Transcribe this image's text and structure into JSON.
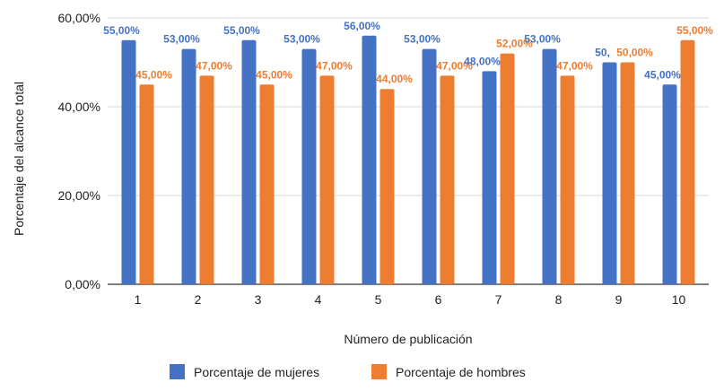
{
  "chart_data": {
    "type": "bar",
    "title": "",
    "xlabel": "Número de publicación",
    "ylabel": "Porcentaje del alcance total",
    "categories": [
      "1",
      "2",
      "3",
      "4",
      "5",
      "6",
      "7",
      "8",
      "9",
      "10"
    ],
    "ylim": [
      0,
      60
    ],
    "yticks": [
      0,
      20,
      40,
      60
    ],
    "ytick_labels": [
      "0,00%",
      "20,00%",
      "40,00%",
      "60,00%"
    ],
    "grid": true,
    "legend_position": "bottom",
    "series": [
      {
        "name": "Porcentaje de mujeres",
        "color": "#4472c4",
        "label_color": "#4472c4",
        "values": [
          55,
          53,
          55,
          53,
          56,
          53,
          48,
          53,
          50,
          45
        ],
        "labels": [
          "55,00%",
          "53,00%",
          "55,00%",
          "53,00%",
          "56,00%",
          "53,00%",
          "48,00%",
          "53,00%",
          "50,",
          "45,00%"
        ]
      },
      {
        "name": "Porcentaje de hombres",
        "color": "#ed7d31",
        "label_color": "#ed7d31",
        "values": [
          45,
          47,
          45,
          47,
          44,
          47,
          52,
          47,
          50,
          55
        ],
        "labels": [
          "45,00%",
          "47,00%",
          "45,00%",
          "47,00%",
          "44,00%",
          "47,00%",
          "52,00%",
          "47,00%",
          "50,00%",
          "55,00%"
        ]
      }
    ]
  }
}
